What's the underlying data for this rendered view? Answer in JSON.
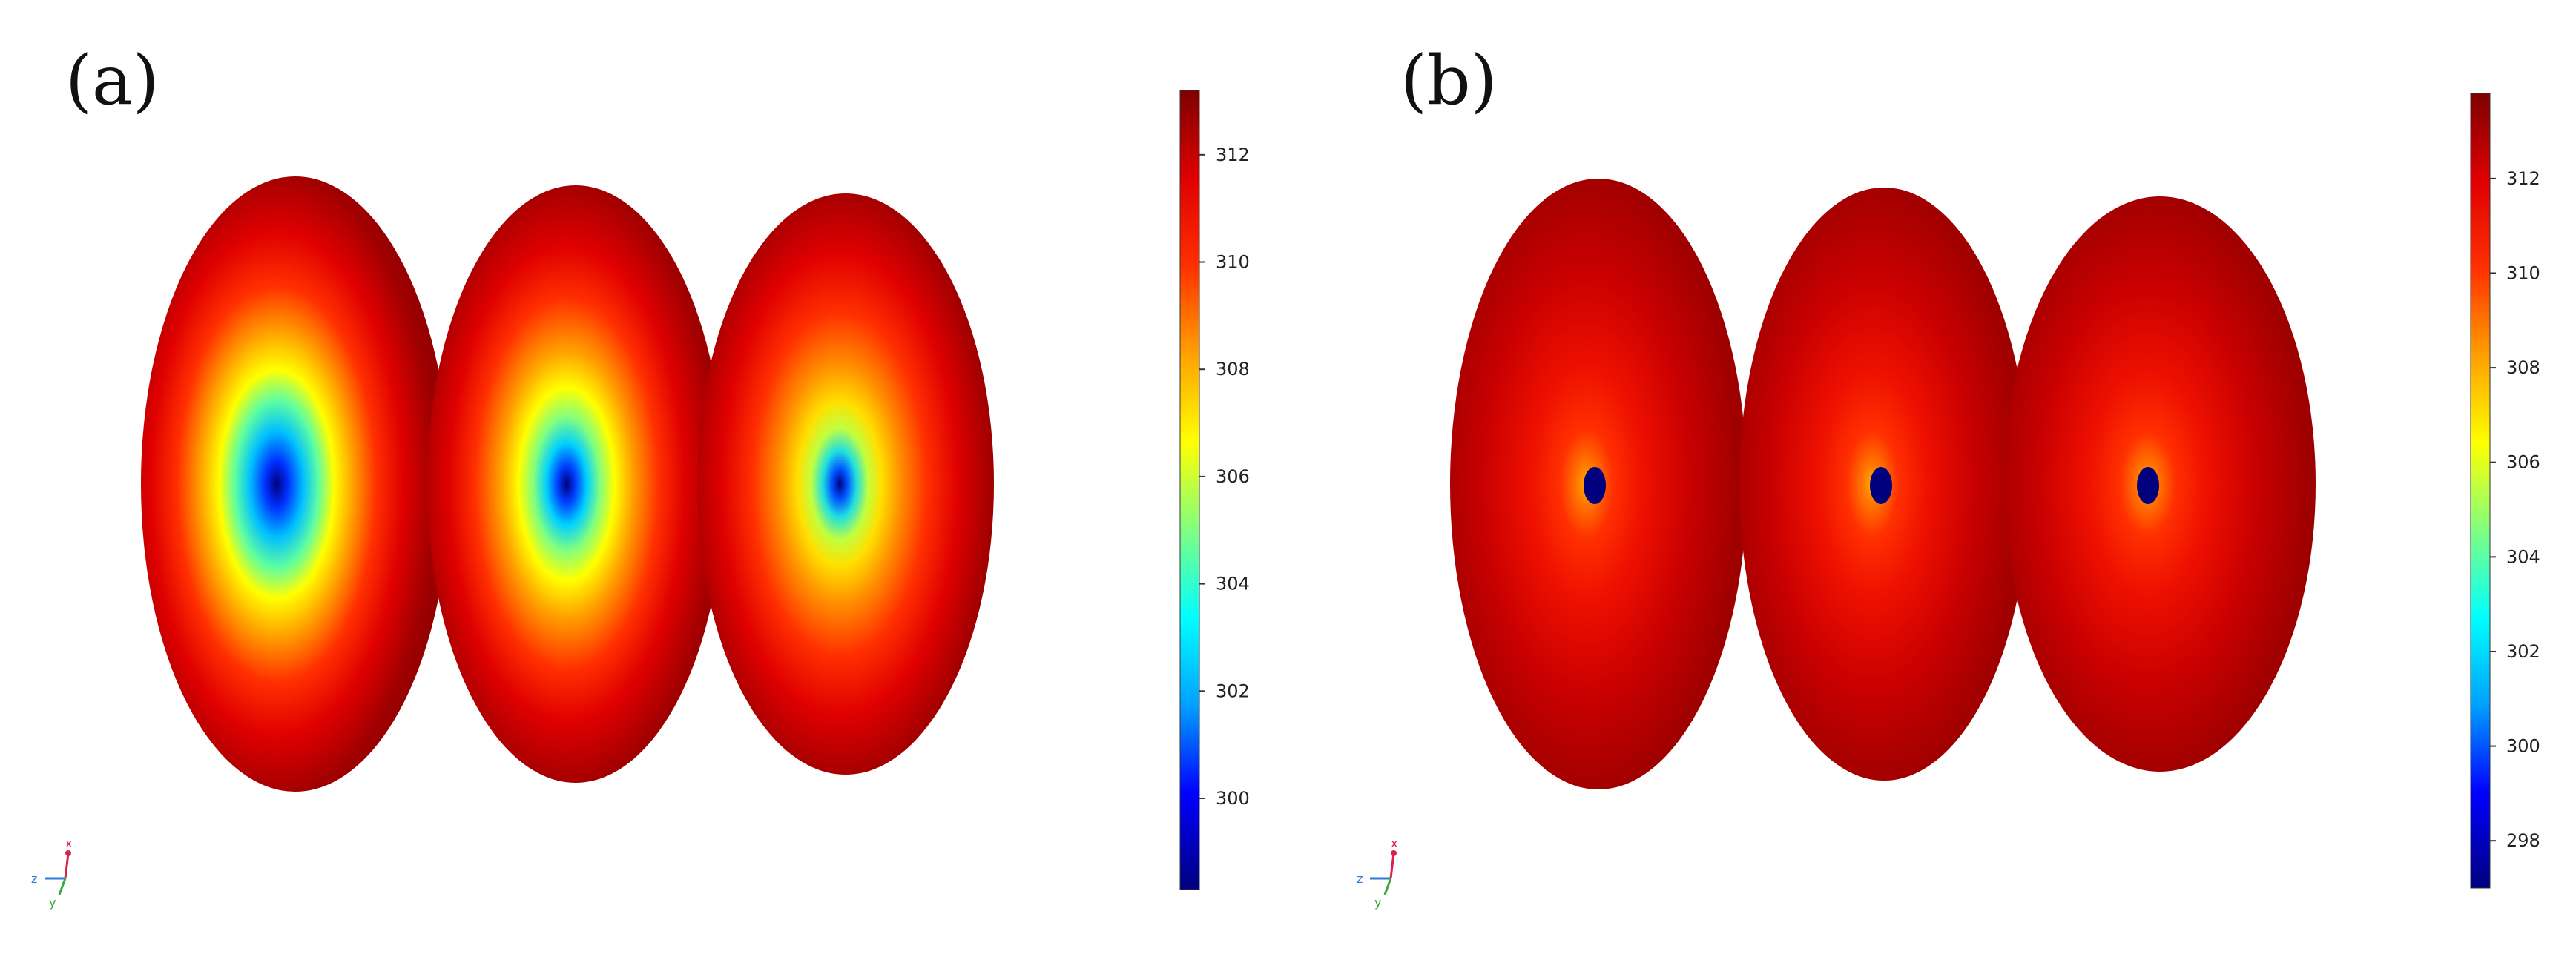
{
  "panels": [
    {
      "label": "(a)",
      "colorbar_ticks": [
        "312",
        "310",
        "308",
        "306",
        "304",
        "302",
        "300"
      ],
      "colorbar_range": [
        298.3,
        313.2
      ]
    },
    {
      "label": "(b)",
      "colorbar_ticks": [
        "312",
        "310",
        "308",
        "306",
        "304",
        "302",
        "300",
        "298"
      ],
      "colorbar_range": [
        297.0,
        313.8
      ]
    }
  ],
  "triad": {
    "x": "x",
    "y": "y",
    "z": "z"
  },
  "colors": {
    "colormap": [
      "#00007f",
      "#0000ff",
      "#00a0ff",
      "#00ffff",
      "#80ff80",
      "#ffff00",
      "#ffa000",
      "#ff3000",
      "#df0000",
      "#7f0000"
    ],
    "background": "#ffffff"
  }
}
